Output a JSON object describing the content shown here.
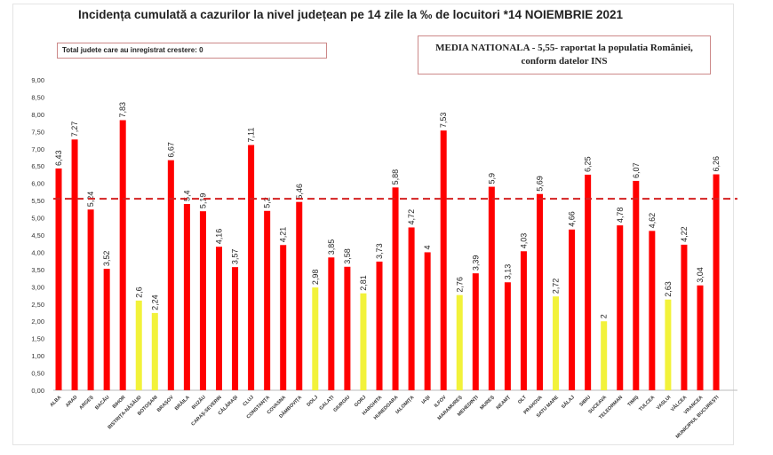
{
  "title": "Incidența cumulată a cazurilor la nivel județean pe 14 zile la ‰ de locuitori *",
  "date": "14 NOIEMBRIE 2021",
  "growth_note": "Total judete care au inregistrat crestere: 0",
  "media_note_line1": "MEDIA NATIONALA - 5,55-  raportat la populatia României,",
  "media_note_line2": "conform datelor INS",
  "chart_data": {
    "type": "bar",
    "title": "Incidența cumulată a cazurilor la nivel județean pe 14 zile la ‰ de locuitori *",
    "categories": [
      "ALBA",
      "ARAD",
      "ARGEȘ",
      "BACĂU",
      "BIHOR",
      "BISTRIȚA-NĂSĂUD",
      "BOTOȘANI",
      "BRAȘOV",
      "BRĂILA",
      "BUZĂU",
      "CARAȘ-SEVERIN",
      "CĂLĂRAȘI",
      "CLUJ",
      "CONSTANȚA",
      "COVASNA",
      "DÂMBOVIȚA",
      "DOLJ",
      "GALAȚI",
      "GIURGIU",
      "GORJ",
      "HARGHITA",
      "HUNEDOARA",
      "IALOMIȚA",
      "IAȘI",
      "ILFOV",
      "MARAMUREȘ",
      "MEHEDINȚI",
      "MUREȘ",
      "NEAMȚ",
      "OLT",
      "PRAHOVA",
      "SATU MARE",
      "SĂLAJ",
      "SIBIU",
      "SUCEAVA",
      "TELEORMAN",
      "TIMIȘ",
      "TULCEA",
      "VASLUI",
      "VÂLCEA",
      "VRANCEA",
      "MUNICIPIUL BUCUREȘTI"
    ],
    "values": [
      6.43,
      7.27,
      5.24,
      3.52,
      7.83,
      2.6,
      2.24,
      6.67,
      5.4,
      5.19,
      4.16,
      3.57,
      7.11,
      5.2,
      4.21,
      5.46,
      2.98,
      3.85,
      3.58,
      2.81,
      3.73,
      5.88,
      4.72,
      4,
      7.53,
      2.76,
      3.39,
      5.9,
      3.13,
      4.03,
      5.69,
      2.72,
      4.66,
      6.25,
      2,
      4.78,
      6.07,
      4.62,
      2.63,
      4.22,
      3.04,
      6.26
    ],
    "value_labels": [
      "6,43",
      "7,27",
      "5,24",
      "3,52",
      "7,83",
      "2,6",
      "2,24",
      "6,67",
      "5,4",
      "5,19",
      "4,16",
      "3,57",
      "7,11",
      "5,2",
      "4,21",
      "5,46",
      "2,98",
      "3,85",
      "3,58",
      "2,81",
      "3,73",
      "5,88",
      "4,72",
      "4",
      "7,53",
      "2,76",
      "3,39",
      "5,9",
      "3,13",
      "4,03",
      "5,69",
      "2,72",
      "4,66",
      "6,25",
      "2",
      "4,78",
      "6,07",
      "4,62",
      "2,63",
      "4,22",
      "3,04",
      "6,26"
    ],
    "yticks": [
      "0,00",
      "0,50",
      "1,00",
      "1,50",
      "2,00",
      "2,50",
      "3,00",
      "3,50",
      "4,00",
      "4,50",
      "5,00",
      "5,50",
      "6,00",
      "6,50",
      "7,00",
      "7,50",
      "8,00",
      "8,50",
      "9,00"
    ],
    "ylim": [
      0,
      9
    ],
    "reference_line": 5.55,
    "colors": {
      "above_3": "#ff0000",
      "below_3": "#f2f23a",
      "reference_line": "#d42020"
    }
  }
}
